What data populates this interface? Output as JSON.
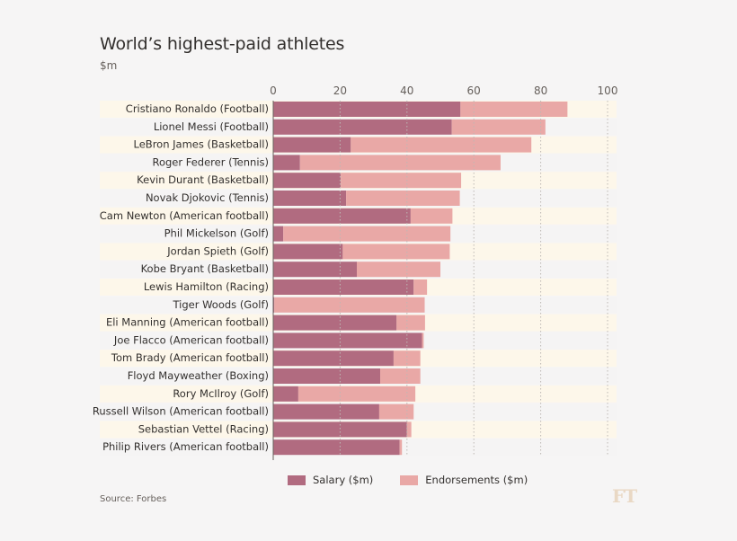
{
  "header": {
    "title": "World’s highest-paid athletes",
    "subtitle": "$m"
  },
  "colors": {
    "salary": "#b16b80",
    "endorsements": "#e9a8a6",
    "band_even": "#fdf7ea",
    "band_odd": "#f5f4f4",
    "gridline": "#bdb8b4"
  },
  "chart_data": {
    "type": "bar",
    "orientation": "horizontal",
    "stacked": true,
    "title": "World’s highest-paid athletes",
    "subtitle": "$m",
    "xlim": [
      0,
      100
    ],
    "xticks": [
      0,
      20,
      40,
      60,
      80,
      100
    ],
    "categories": [
      "Cristiano Ronaldo (Football)",
      "Lionel Messi (Football)",
      "LeBron James (Basketball)",
      "Roger Federer (Tennis)",
      "Kevin Durant (Basketball)",
      "Novak Djokovic (Tennis)",
      "Cam Newton (American football)",
      "Phil Mickelson (Golf)",
      "Jordan Spieth (Golf)",
      "Kobe Bryant (Basketball)",
      "Lewis Hamilton (Racing)",
      "Tiger Woods (Golf)",
      "Eli Manning (American football)",
      "Joe Flacco (American football)",
      "Tom Brady (American football)",
      "Floyd Mayweather (Boxing)",
      "Rory McIlroy (Golf)",
      "Russell Wilson (American football)",
      "Sebastian Vettel (Racing)",
      "Philip Rivers (American football)"
    ],
    "series": [
      {
        "name": "Salary ($m)",
        "values": [
          56,
          53.4,
          23.2,
          8,
          20.2,
          21.8,
          41.1,
          3,
          20.8,
          25,
          42,
          0.3,
          36.9,
          44.5,
          36,
          32,
          7.5,
          31.7,
          40,
          37.8
        ]
      },
      {
        "name": "Endorsements ($m)",
        "values": [
          32,
          28,
          54,
          60,
          36,
          34,
          12.5,
          50,
          32,
          25,
          4,
          45,
          8.5,
          0.5,
          8,
          12,
          35,
          10.3,
          1.3,
          0.7
        ]
      }
    ],
    "legend_position": "bottom",
    "gridlines": true
  },
  "legend": {
    "salary": "Salary ($m)",
    "endorsements": "Endorsements ($m)"
  },
  "footer": {
    "source": "Source: Forbes",
    "logo": "FT"
  }
}
